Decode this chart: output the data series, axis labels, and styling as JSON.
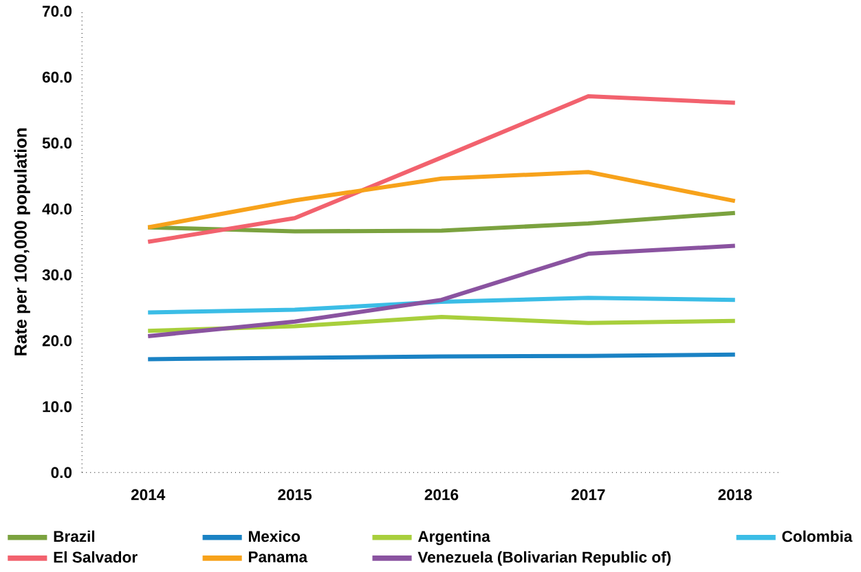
{
  "chart_data": {
    "type": "line",
    "ylabel": "Rate per 100,000 population",
    "categories": [
      "2014",
      "2015",
      "2016",
      "2017",
      "2018"
    ],
    "ylim": [
      0,
      70
    ],
    "yticks": [
      {
        "value": 0,
        "label": "0.0"
      },
      {
        "value": 10,
        "label": "10.0"
      },
      {
        "value": 20,
        "label": "20.0"
      },
      {
        "value": 30,
        "label": "30.0"
      },
      {
        "value": 40,
        "label": "40.0"
      },
      {
        "value": 50,
        "label": "50.0"
      },
      {
        "value": 60,
        "label": "60.0"
      },
      {
        "value": 70,
        "label": "70.0"
      }
    ],
    "legend": "bottom",
    "marker": "none",
    "line_style": "solid",
    "series": [
      {
        "name": "Brazil",
        "color": "#7ba23f",
        "values": [
          37.2,
          36.6,
          36.7,
          37.8,
          39.4
        ]
      },
      {
        "name": "Mexico",
        "color": "#1a82c4",
        "values": [
          17.2,
          17.4,
          17.6,
          17.7,
          17.9
        ]
      },
      {
        "name": "Argentina",
        "color": "#a8cf3c",
        "values": [
          21.5,
          22.2,
          23.6,
          22.7,
          23.0
        ]
      },
      {
        "name": "Colombia",
        "color": "#3bbde6",
        "values": [
          24.3,
          24.7,
          25.9,
          26.5,
          26.2
        ]
      },
      {
        "name": "El Salvador",
        "color": "#f2626e",
        "values": [
          35.0,
          38.6,
          47.8,
          57.1,
          56.1
        ]
      },
      {
        "name": "Panama",
        "color": "#f7a21b",
        "values": [
          37.2,
          41.3,
          44.6,
          45.6,
          41.2
        ]
      },
      {
        "name": "Venezuela (Bolivarian Republic of)",
        "color": "#8a53a0",
        "values": [
          20.7,
          22.9,
          26.2,
          33.2,
          34.4
        ]
      }
    ]
  }
}
